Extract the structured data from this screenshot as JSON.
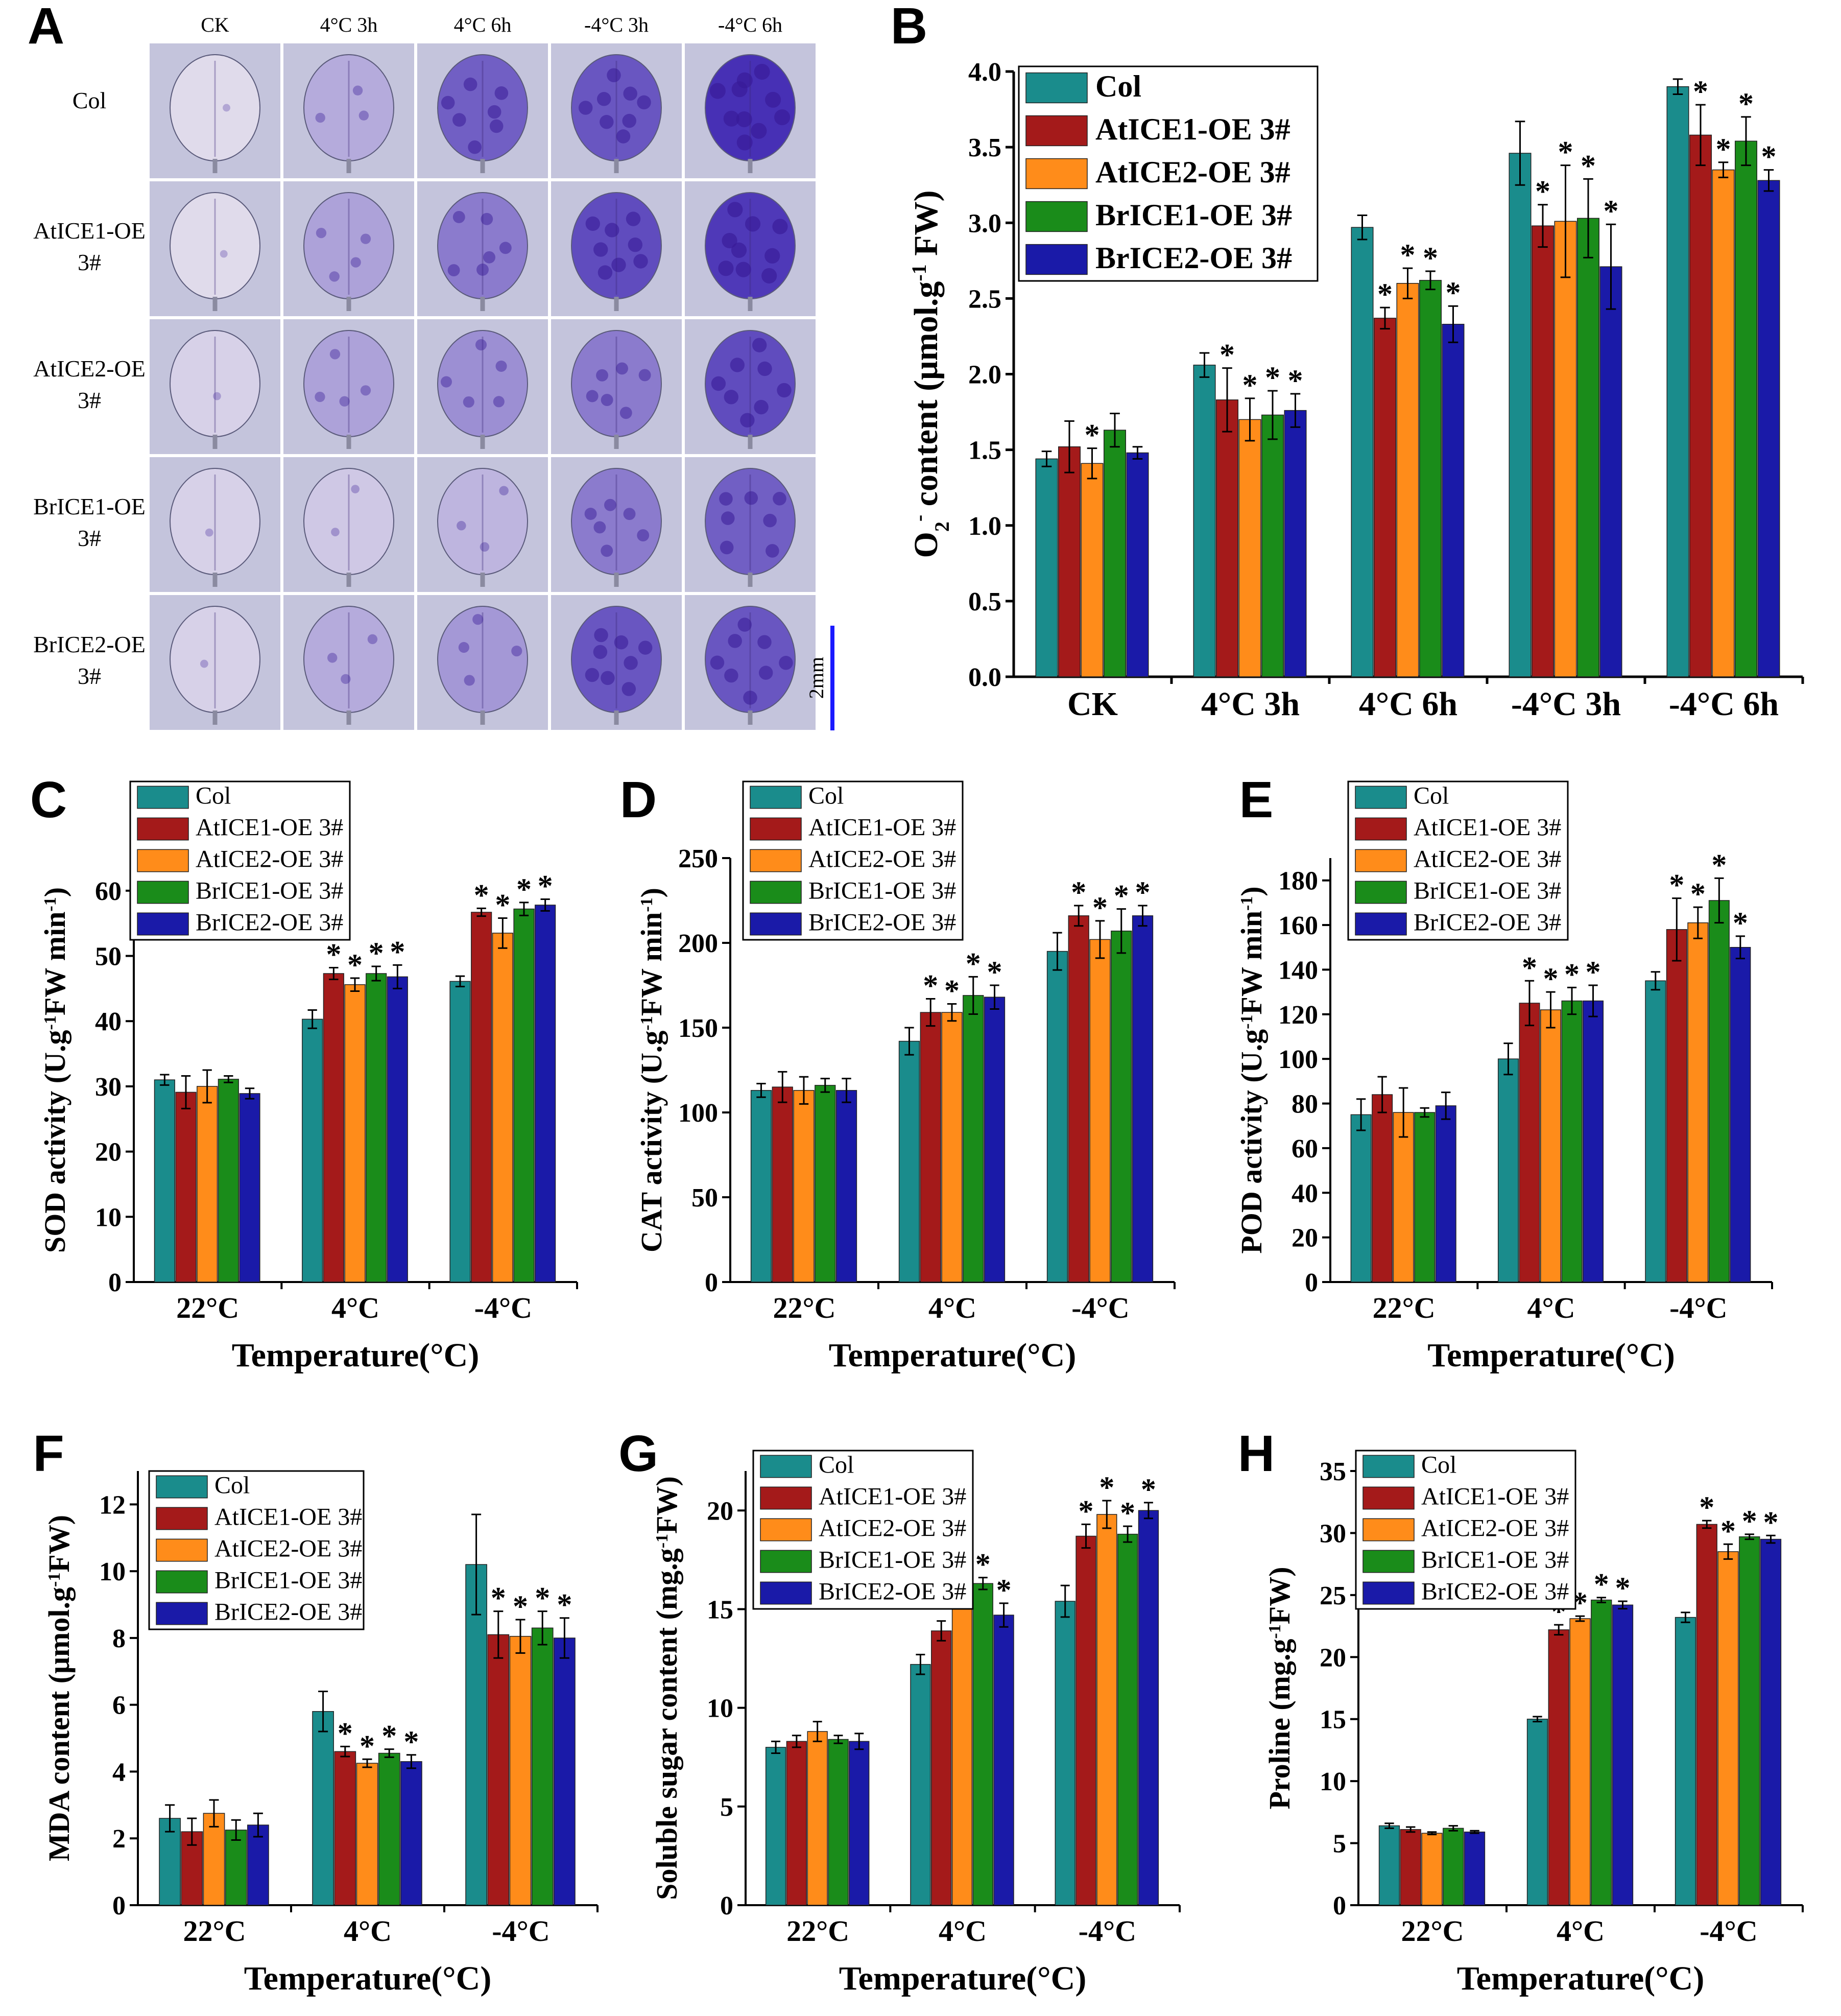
{
  "colors": {
    "Col": "#1a8c8c",
    "AtICE1-OE 3#": "#a41a1a",
    "AtICE2-OE 3#": "#ff8c1a",
    "BrICE1-OE 3#": "#1a8c1a",
    "BrICE2-OE 3#": "#1a1aa8"
  },
  "panelA": {
    "label": "A",
    "columns": [
      "CK",
      "4°C 3h",
      "4°C 6h",
      "-4°C 3h",
      "-4°C 6h"
    ],
    "rows": [
      [
        "Col"
      ],
      [
        "AtICE1-OE",
        "3#"
      ],
      [
        "AtICE2-OE",
        "3#"
      ],
      [
        "BrICE1-OE",
        "3#"
      ],
      [
        "BrICE2-OE",
        "3#"
      ]
    ],
    "scale_label": "2mm",
    "stain_levels": [
      [
        0.05,
        0.3,
        0.7,
        0.75,
        0.95
      ],
      [
        0.05,
        0.35,
        0.55,
        0.8,
        0.9
      ],
      [
        0.1,
        0.35,
        0.45,
        0.55,
        0.8
      ],
      [
        0.1,
        0.15,
        0.25,
        0.55,
        0.7
      ],
      [
        0.1,
        0.3,
        0.4,
        0.75,
        0.75
      ]
    ]
  },
  "chart_data": [
    {
      "label": "B",
      "type": "bar",
      "categories": [
        "CK",
        "4°C 3h",
        "4°C 6h",
        "-4°C 3h",
        "-4°C 6h"
      ],
      "ylabel_parts": [
        "O",
        "2",
        "-",
        " content (μmol.g",
        "-1",
        " FW)"
      ],
      "xlabel": "",
      "ylim": [
        0,
        4.0
      ],
      "yticks": [
        "0.0",
        "0.5",
        "1.0",
        "1.5",
        "2.0",
        "2.5",
        "3.0",
        "3.5",
        "4.0"
      ],
      "legend": [
        "Col",
        "AtICE1-OE 3#",
        "AtICE2-OE 3#",
        "BrICE1-OE 3#",
        "BrICE2-OE 3#"
      ],
      "series": [
        {
          "name": "Col",
          "values": [
            1.44,
            2.06,
            2.97,
            3.46,
            3.9
          ],
          "errors": [
            0.05,
            0.08,
            0.08,
            0.21,
            0.05
          ],
          "stars": [
            false,
            false,
            false,
            false,
            false
          ]
        },
        {
          "name": "AtICE1-OE 3#",
          "values": [
            1.52,
            1.83,
            2.37,
            2.98,
            3.58
          ],
          "errors": [
            0.17,
            0.21,
            0.07,
            0.14,
            0.2
          ],
          "stars": [
            false,
            true,
            true,
            true,
            true
          ]
        },
        {
          "name": "AtICE2-OE 3#",
          "values": [
            1.41,
            1.7,
            2.6,
            3.01,
            3.35
          ],
          "errors": [
            0.1,
            0.14,
            0.1,
            0.37,
            0.05
          ],
          "stars": [
            true,
            true,
            true,
            true,
            true
          ]
        },
        {
          "name": "BrICE1-OE 3#",
          "values": [
            1.63,
            1.73,
            2.62,
            3.03,
            3.54
          ],
          "errors": [
            0.11,
            0.16,
            0.06,
            0.26,
            0.16
          ],
          "stars": [
            false,
            true,
            true,
            true,
            true
          ]
        },
        {
          "name": "BrICE2-OE 3#",
          "values": [
            1.48,
            1.76,
            2.33,
            2.71,
            3.28
          ],
          "errors": [
            0.04,
            0.11,
            0.12,
            0.28,
            0.07
          ],
          "stars": [
            false,
            true,
            true,
            true,
            true
          ]
        }
      ]
    },
    {
      "label": "C",
      "type": "bar",
      "categories": [
        "22°C",
        "4°C",
        "-4°C"
      ],
      "ylabel_parts": [
        "SOD activity (U.g",
        "-1",
        "FW min",
        "-1",
        ")"
      ],
      "xlabel": "Temperature(°C)",
      "ylim": [
        0,
        65
      ],
      "yticks": [
        "0",
        "10",
        "20",
        "30",
        "40",
        "50",
        "60"
      ],
      "legend": [
        "Col",
        "AtICE1-OE 3#",
        "AtICE2-OE 3#",
        "BrICE1-OE 3#",
        "BrICE2-OE 3#"
      ],
      "series": [
        {
          "name": "Col",
          "values": [
            31.0,
            40.3,
            46.1
          ],
          "errors": [
            0.8,
            1.4,
            0.8
          ],
          "stars": [
            false,
            false,
            false
          ]
        },
        {
          "name": "AtICE1-OE 3#",
          "values": [
            29.1,
            47.3,
            56.7
          ],
          "errors": [
            2.5,
            0.9,
            0.6
          ],
          "stars": [
            false,
            true,
            true
          ]
        },
        {
          "name": "AtICE2-OE 3#",
          "values": [
            30.0,
            45.6,
            53.5
          ],
          "errors": [
            2.5,
            1.0,
            2.3
          ],
          "stars": [
            false,
            true,
            true
          ]
        },
        {
          "name": "BrICE1-OE 3#",
          "values": [
            31.1,
            47.3,
            57.2
          ],
          "errors": [
            0.5,
            1.1,
            1.0
          ],
          "stars": [
            false,
            true,
            true
          ]
        },
        {
          "name": "BrICE2-OE 3#",
          "values": [
            28.9,
            46.8,
            57.8
          ],
          "errors": [
            0.8,
            1.8,
            0.9
          ],
          "stars": [
            false,
            true,
            true
          ]
        }
      ]
    },
    {
      "label": "D",
      "type": "bar",
      "categories": [
        "22°C",
        "4°C",
        "-4°C"
      ],
      "ylabel_parts": [
        "CAT activity (U.g",
        "-1",
        "FW min",
        "-1",
        ")"
      ],
      "xlabel": "Temperature(°C)",
      "ylim": [
        0,
        250
      ],
      "yticks": [
        "0",
        "50",
        "100",
        "150",
        "200",
        "250"
      ],
      "legend": [
        "Col",
        "AtICE1-OE 3#",
        "AtICE2-OE 3#",
        "BrICE1-OE 3#",
        "BrICE2-OE 3#"
      ],
      "series": [
        {
          "name": "Col",
          "values": [
            113,
            142,
            195
          ],
          "errors": [
            4,
            8,
            11
          ],
          "stars": [
            false,
            false,
            false
          ]
        },
        {
          "name": "AtICE1-OE 3#",
          "values": [
            115,
            159,
            216
          ],
          "errors": [
            9,
            8,
            6
          ],
          "stars": [
            false,
            true,
            true
          ]
        },
        {
          "name": "AtICE2-OE 3#",
          "values": [
            113,
            159,
            202
          ],
          "errors": [
            8,
            5,
            11
          ],
          "stars": [
            false,
            true,
            true
          ]
        },
        {
          "name": "BrICE1-OE 3#",
          "values": [
            116,
            169,
            207
          ],
          "errors": [
            4,
            11,
            13
          ],
          "stars": [
            false,
            true,
            true
          ]
        },
        {
          "name": "BrICE2-OE 3#",
          "values": [
            113,
            168,
            216
          ],
          "errors": [
            7,
            7,
            6
          ],
          "stars": [
            false,
            true,
            true
          ]
        }
      ]
    },
    {
      "label": "E",
      "type": "bar",
      "categories": [
        "22°C",
        "4°C",
        "-4°C"
      ],
      "ylabel_parts": [
        "POD activity (U.g",
        "-1",
        "FW min",
        "-1",
        ")"
      ],
      "xlabel": "Temperature(°C)",
      "ylim": [
        0,
        190
      ],
      "yticks": [
        "0",
        "20",
        "40",
        "60",
        "80",
        "100",
        "120",
        "140",
        "160",
        "180"
      ],
      "legend": [
        "Col",
        "AtICE1-OE 3#",
        "AtICE2-OE 3#",
        "BrICE1-OE 3#",
        "BrICE2-OE 3#"
      ],
      "series": [
        {
          "name": "Col",
          "values": [
            75,
            100,
            135
          ],
          "errors": [
            7,
            7,
            4
          ],
          "stars": [
            false,
            false,
            false
          ]
        },
        {
          "name": "AtICE1-OE 3#",
          "values": [
            84,
            125,
            158
          ],
          "errors": [
            8,
            10,
            14
          ],
          "stars": [
            false,
            true,
            true
          ]
        },
        {
          "name": "AtICE2-OE 3#",
          "values": [
            76,
            122,
            161
          ],
          "errors": [
            11,
            8,
            7
          ],
          "stars": [
            false,
            true,
            true
          ]
        },
        {
          "name": "BrICE1-OE 3#",
          "values": [
            76,
            126,
            171
          ],
          "errors": [
            2,
            6,
            10
          ],
          "stars": [
            false,
            true,
            true
          ]
        },
        {
          "name": "BrICE2-OE 3#",
          "values": [
            79,
            126,
            150
          ],
          "errors": [
            6,
            7,
            5
          ],
          "stars": [
            false,
            true,
            true
          ]
        }
      ]
    },
    {
      "label": "F",
      "type": "bar",
      "categories": [
        "22°C",
        "4°C",
        "-4°C"
      ],
      "ylabel_parts": [
        "MDA content (μmol.g",
        "-1",
        "FW)"
      ],
      "xlabel": "Temperature(°C)",
      "ylim": [
        0,
        13
      ],
      "yticks": [
        "0",
        "2",
        "4",
        "6",
        "8",
        "10",
        "12"
      ],
      "legend": [
        "Col",
        "AtICE1-OE 3#",
        "AtICE2-OE 3#",
        "BrICE1-OE 3#",
        "BrICE2-OE 3#"
      ],
      "series": [
        {
          "name": "Col",
          "values": [
            2.6,
            5.8,
            10.2
          ],
          "errors": [
            0.4,
            0.6,
            1.5
          ],
          "stars": [
            false,
            false,
            false
          ]
        },
        {
          "name": "AtICE1-OE 3#",
          "values": [
            2.2,
            4.6,
            8.1
          ],
          "errors": [
            0.4,
            0.15,
            0.7
          ],
          "stars": [
            false,
            true,
            true
          ]
        },
        {
          "name": "AtICE2-OE 3#",
          "values": [
            2.75,
            4.25,
            8.05
          ],
          "errors": [
            0.4,
            0.12,
            0.5
          ],
          "stars": [
            false,
            true,
            true
          ]
        },
        {
          "name": "BrICE1-OE 3#",
          "values": [
            2.25,
            4.55,
            8.3
          ],
          "errors": [
            0.3,
            0.12,
            0.5
          ],
          "stars": [
            false,
            true,
            true
          ]
        },
        {
          "name": "BrICE2-OE 3#",
          "values": [
            2.4,
            4.3,
            8.0
          ],
          "errors": [
            0.35,
            0.2,
            0.6
          ],
          "stars": [
            false,
            true,
            true
          ]
        }
      ]
    },
    {
      "label": "G",
      "type": "bar",
      "categories": [
        "22°C",
        "4°C",
        "-4°C"
      ],
      "ylabel_parts": [
        "Soluble sugar content (mg.g",
        "-1",
        "FW)"
      ],
      "xlabel": "Temperature(°C)",
      "ylim": [
        0,
        22
      ],
      "yticks": [
        "0",
        "5",
        "10",
        "15",
        "20"
      ],
      "legend": [
        "Col",
        "AtICE1-OE 3#",
        "AtICE2-OE 3#",
        "BrICE1-OE 3#",
        "BrICE2-OE 3#"
      ],
      "series": [
        {
          "name": "Col",
          "values": [
            8.0,
            12.2,
            15.4
          ],
          "errors": [
            0.3,
            0.5,
            0.8
          ],
          "stars": [
            false,
            false,
            false
          ]
        },
        {
          "name": "AtICE1-OE 3#",
          "values": [
            8.3,
            13.9,
            18.7
          ],
          "errors": [
            0.3,
            0.5,
            0.6
          ],
          "stars": [
            false,
            true,
            true
          ]
        },
        {
          "name": "AtICE2-OE 3#",
          "values": [
            8.8,
            16.1,
            19.8
          ],
          "errors": [
            0.5,
            0.3,
            0.7
          ],
          "stars": [
            false,
            true,
            true
          ]
        },
        {
          "name": "BrICE1-OE 3#",
          "values": [
            8.4,
            16.3,
            18.8
          ],
          "errors": [
            0.2,
            0.3,
            0.4
          ],
          "stars": [
            false,
            true,
            true
          ]
        },
        {
          "name": "BrICE2-OE 3#",
          "values": [
            8.3,
            14.7,
            20.0
          ],
          "errors": [
            0.4,
            0.6,
            0.4
          ],
          "stars": [
            false,
            true,
            true
          ]
        }
      ]
    },
    {
      "label": "H",
      "type": "bar",
      "categories": [
        "22°C",
        "4°C",
        "-4°C"
      ],
      "ylabel_parts": [
        "Proline (mg.g",
        "-1",
        "FW)"
      ],
      "xlabel": "Temperature(°C)",
      "ylim": [
        0,
        35
      ],
      "yticks": [
        "0",
        "5",
        "10",
        "15",
        "20",
        "25",
        "30",
        "35"
      ],
      "legend": [
        "Col",
        "AtICE1-OE 3#",
        "AtICE2-OE 3#",
        "BrICE1-OE 3#",
        "BrICE2-OE 3#"
      ],
      "series": [
        {
          "name": "Col",
          "values": [
            6.4,
            15.0,
            23.2
          ],
          "errors": [
            0.2,
            0.2,
            0.4
          ],
          "stars": [
            false,
            false,
            false
          ]
        },
        {
          "name": "AtICE1-OE 3#",
          "values": [
            6.1,
            22.2,
            30.7
          ],
          "errors": [
            0.2,
            0.4,
            0.3
          ],
          "stars": [
            false,
            true,
            true
          ]
        },
        {
          "name": "AtICE2-OE 3#",
          "values": [
            5.8,
            23.1,
            28.5
          ],
          "errors": [
            0.1,
            0.2,
            0.6
          ],
          "stars": [
            false,
            true,
            true
          ]
        },
        {
          "name": "BrICE1-OE 3#",
          "values": [
            6.2,
            24.6,
            29.7
          ],
          "errors": [
            0.2,
            0.2,
            0.2
          ],
          "stars": [
            false,
            true,
            true
          ]
        },
        {
          "name": "BrICE2-OE 3#",
          "values": [
            5.9,
            24.2,
            29.5
          ],
          "errors": [
            0.1,
            0.3,
            0.3
          ],
          "stars": [
            false,
            true,
            true
          ]
        }
      ]
    }
  ]
}
